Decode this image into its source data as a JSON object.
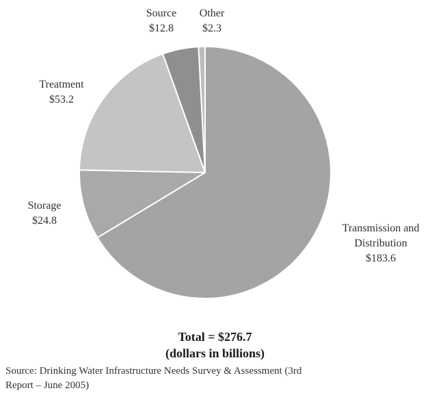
{
  "chart_data": {
    "type": "pie",
    "title": "",
    "slices": [
      {
        "label": "Transmission and Distribution",
        "value_text": "$183.6",
        "value": 183.6,
        "color": "#a4a4a4"
      },
      {
        "label": "Storage",
        "value_text": "$24.8",
        "value": 24.8,
        "color": "#a9a9a9"
      },
      {
        "label": "Treatment",
        "value_text": "$53.2",
        "value": 53.2,
        "color": "#c4c4c4"
      },
      {
        "label": "Source",
        "value_text": "$12.8",
        "value": 12.8,
        "color": "#8f8f8f"
      },
      {
        "label": "Other",
        "value_text": "$2.3",
        "value": 2.3,
        "color": "#bcbcbc"
      }
    ],
    "total_text": "Total = $276.7",
    "units_text": "(dollars in billions)",
    "start_angle": "12 o'clock",
    "direction": "clockwise",
    "slice_border_color": "#ffffff"
  },
  "footnote": {
    "line1": "Source: Drinking Water Infrastructure Needs Survey & Assessment (3rd",
    "line2": "Report – June 2005)"
  }
}
